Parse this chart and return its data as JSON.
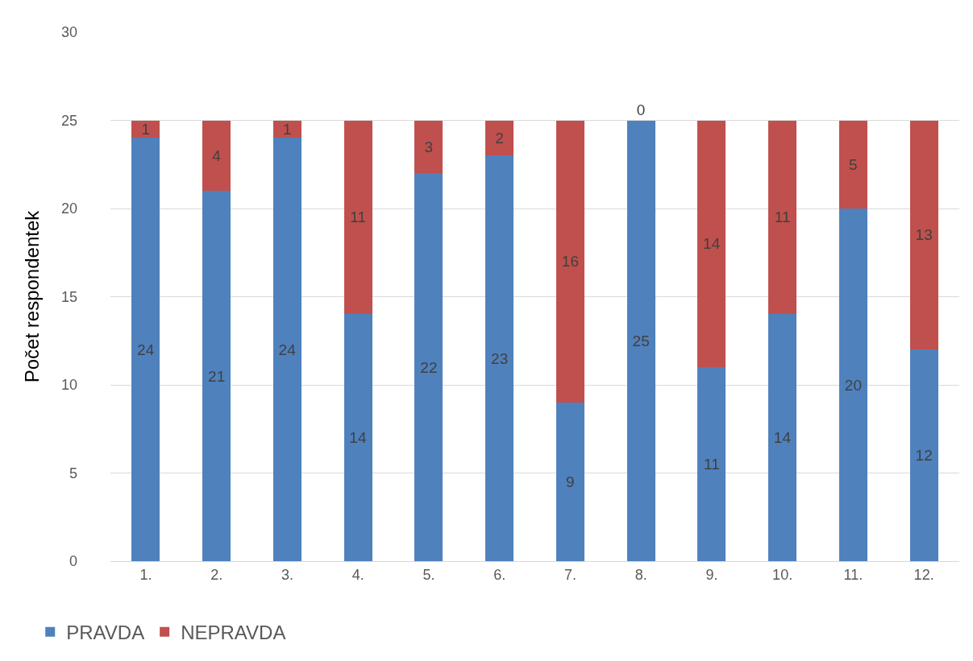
{
  "chart_data": {
    "type": "bar",
    "stacked": true,
    "ylabel": "Počet respondentek",
    "categories": [
      "1.",
      "2.",
      "3.",
      "4.",
      "5.",
      "6.",
      "7.",
      "8.",
      "9.",
      "10.",
      "11.",
      "12."
    ],
    "series": [
      {
        "name": "PRAVDA",
        "color": "#4f81bd",
        "values": [
          24,
          21,
          24,
          14,
          22,
          23,
          9,
          25,
          11,
          14,
          20,
          12
        ]
      },
      {
        "name": "NEPRAVDA",
        "color": "#c0504d",
        "values": [
          1,
          4,
          1,
          11,
          3,
          2,
          16,
          0,
          14,
          11,
          5,
          13
        ]
      }
    ],
    "ylim": [
      0,
      30
    ],
    "yticks": [
      0,
      5,
      10,
      15,
      20,
      25,
      30
    ],
    "grid": "y",
    "legend": "bottom left",
    "data_labels": true
  }
}
